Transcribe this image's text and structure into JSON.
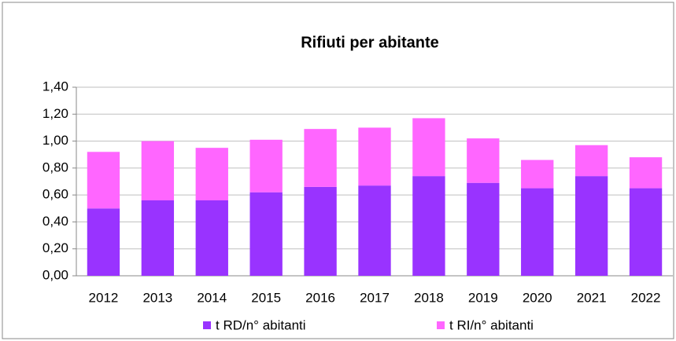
{
  "chart_data": {
    "type": "stacked_bar",
    "title": "Rifiuti per abitante",
    "categories": [
      "2012",
      "2013",
      "2014",
      "2015",
      "2016",
      "2017",
      "2018",
      "2019",
      "2020",
      "2021",
      "2022"
    ],
    "series": [
      {
        "name": "t RD/n° abitanti",
        "color": "#9933ff",
        "values": [
          0.5,
          0.56,
          0.56,
          0.62,
          0.66,
          0.67,
          0.74,
          0.69,
          0.65,
          0.74,
          0.65
        ]
      },
      {
        "name": "t RI/n° abitanti",
        "color": "#ff66ff",
        "values": [
          0.42,
          0.44,
          0.39,
          0.39,
          0.43,
          0.43,
          0.43,
          0.33,
          0.21,
          0.23,
          0.23
        ]
      }
    ],
    "ylim": [
      0,
      1.4
    ],
    "yticks": [
      {
        "value": 0,
        "label": "0,00"
      },
      {
        "value": 0.2,
        "label": "0,20"
      },
      {
        "value": 0.4,
        "label": "0,40"
      },
      {
        "value": 0.6,
        "label": "0,60"
      },
      {
        "value": 0.8,
        "label": "0,80"
      },
      {
        "value": 1.0,
        "label": "1,00"
      },
      {
        "value": 1.2,
        "label": "1,20"
      },
      {
        "value": 1.4,
        "label": "1,40"
      }
    ],
    "grid": true,
    "legend": "bottom"
  }
}
